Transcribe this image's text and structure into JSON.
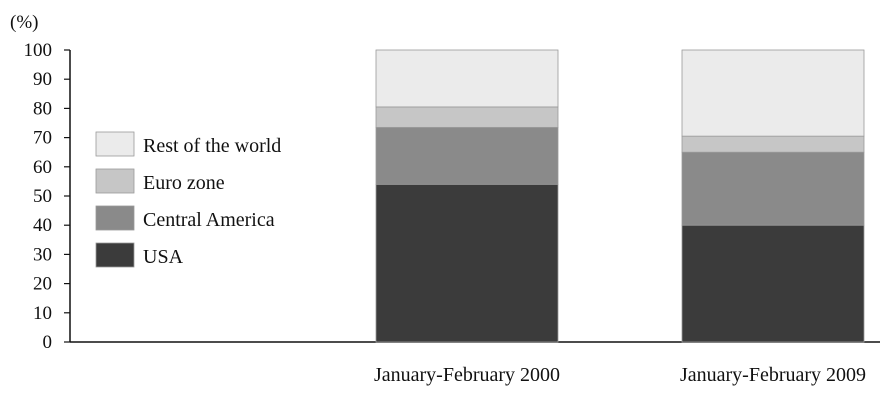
{
  "chart_data": {
    "type": "bar",
    "stacked": true,
    "ylabel": "(%)",
    "ylim": [
      0,
      100
    ],
    "yticks": [
      0,
      10,
      20,
      30,
      40,
      50,
      60,
      70,
      80,
      90,
      100
    ],
    "categories": [
      "January-February 2000",
      "January-February 2009"
    ],
    "series": [
      {
        "name": "USA",
        "values": [
          54,
          40
        ],
        "color": "#3b3b3b"
      },
      {
        "name": "Central America",
        "values": [
          19.5,
          25
        ],
        "color": "#8a8a8a"
      },
      {
        "name": "Euro zone",
        "values": [
          7,
          5.5
        ],
        "color": "#c6c6c6"
      },
      {
        "name": "Rest of the world",
        "values": [
          19.5,
          29.5
        ],
        "color": "#ebebeb"
      }
    ],
    "legend": {
      "position": "left",
      "order": [
        "Rest of the world",
        "Euro zone",
        "Central America",
        "USA"
      ]
    },
    "grid": false
  }
}
